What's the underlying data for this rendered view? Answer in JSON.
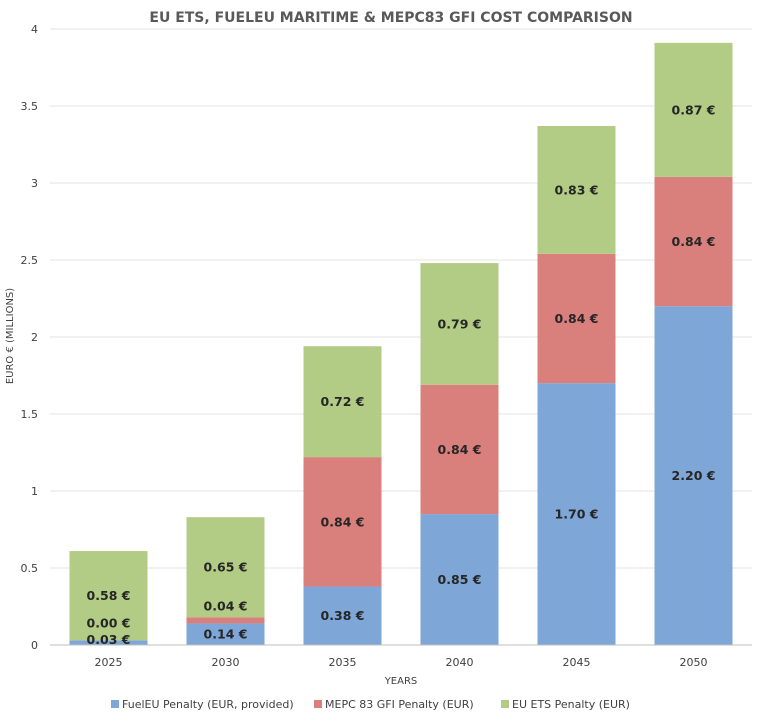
{
  "chart_data": {
    "type": "bar",
    "stacked": true,
    "title": "EU ETS, FUELEU MARITIME & MEPC83 GFI COST COMPARISON",
    "xlabel": "YEARS",
    "ylabel": "EURO € (MILLIONS)",
    "ylim": [
      0,
      4
    ],
    "yticks": [
      0,
      0.5,
      1,
      1.5,
      2,
      2.5,
      3,
      3.5,
      4
    ],
    "ytick_labels": [
      "0",
      "0.5",
      "1",
      "1.5",
      "2",
      "2.5",
      "3",
      "3.5",
      "4"
    ],
    "grid": true,
    "legend_position": "bottom",
    "categories": [
      "2025",
      "2030",
      "2035",
      "2040",
      "2045",
      "2050"
    ],
    "series": [
      {
        "name": "FuelEU Penalty (EUR, provided)",
        "color": "#7ea6d6",
        "values": [
          0.03,
          0.14,
          0.38,
          0.85,
          1.7,
          2.2
        ],
        "labels": [
          "0.03 €",
          "0.14 €",
          "0.38 €",
          "0.85 €",
          "1.70 €",
          "2.20 €"
        ]
      },
      {
        "name": "MEPC 83 GFI Penalty (EUR)",
        "color": "#d9807d",
        "values": [
          0.0,
          0.04,
          0.84,
          0.84,
          0.84,
          0.84
        ],
        "labels": [
          "0.00 €",
          "0.04 €",
          "0.84 €",
          "0.84 €",
          "0.84 €",
          "0.84 €"
        ]
      },
      {
        "name": "EU ETS Penalty (EUR)",
        "color": "#b3cc85",
        "values": [
          0.58,
          0.65,
          0.72,
          0.79,
          0.83,
          0.87
        ],
        "labels": [
          "0.58 €",
          "0.65 €",
          "0.72 €",
          "0.79 €",
          "0.83 €",
          "0.87 €"
        ]
      }
    ]
  }
}
